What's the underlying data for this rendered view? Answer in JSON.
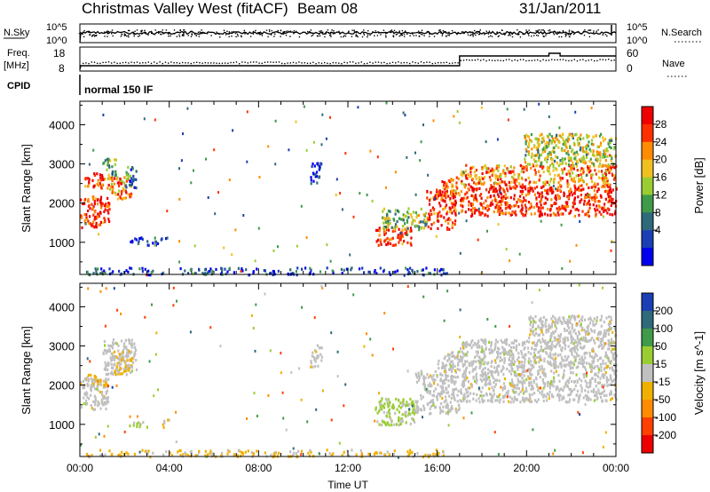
{
  "header": {
    "title": "Christmas Valley West (fitACF)",
    "beam": "Beam 08",
    "date": "31/Jan/2011"
  },
  "top_strips": {
    "nsky": {
      "label": "N.Sky",
      "ticks": [
        "10^5",
        "10^0"
      ]
    },
    "nsearch": {
      "label": "N.Search",
      "ticks": [
        "10^5",
        "10^0"
      ]
    },
    "freq": {
      "label_line1": "Freq.",
      "label_line2": "[MHz]",
      "ticks": [
        "18",
        "8"
      ]
    },
    "nave": {
      "label": "Nave",
      "ticks": [
        "60",
        "0"
      ]
    },
    "cpid": {
      "label": "CPID",
      "value": "normal 150 IF"
    }
  },
  "chart_data": [
    {
      "type": "heatmap",
      "name": "power",
      "ylabel": "Slant Range [km]",
      "xlabel": "Time UT",
      "x_ticks": [
        "00:00",
        "04:00",
        "08:00",
        "12:00",
        "16:00",
        "20:00",
        "00:00"
      ],
      "x_range_hours": [
        0,
        24
      ],
      "y_ticks": [
        1000,
        2000,
        3000,
        4000
      ],
      "ylim": [
        180,
        4600
      ],
      "colorbar": {
        "label": "Power [dB]",
        "ticks": [
          "28",
          "24",
          "20",
          "16",
          "12",
          "8",
          "4"
        ],
        "range": [
          0,
          30
        ],
        "colors": [
          "#0000ee",
          "#1a3fb5",
          "#2e6a7a",
          "#3f9a4a",
          "#9acd32",
          "#f0c020",
          "#ff8c00",
          "#ff3000",
          "#ee0000"
        ]
      },
      "regions": [
        {
          "t": [
            0.0,
            1.3
          ],
          "r": [
            1400,
            2200
          ],
          "power": 27
        },
        {
          "t": [
            0.2,
            1.1
          ],
          "r": [
            2400,
            2800
          ],
          "power": 26
        },
        {
          "t": [
            1.0,
            1.6
          ],
          "r": [
            2700,
            3200
          ],
          "power": 12
        },
        {
          "t": [
            1.2,
            2.3
          ],
          "r": [
            2100,
            2700
          ],
          "power": 22
        },
        {
          "t": [
            2.0,
            2.5
          ],
          "r": [
            2400,
            2950
          ],
          "power": 8
        },
        {
          "t": [
            2.2,
            3.5
          ],
          "r": [
            950,
            1150
          ],
          "power": 5
        },
        {
          "t": [
            3.6,
            4.0
          ],
          "r": [
            950,
            1150
          ],
          "power": 6
        },
        {
          "t": [
            10.3,
            10.8
          ],
          "r": [
            2500,
            3050
          ],
          "power": 4
        },
        {
          "t": [
            13.2,
            14.8
          ],
          "r": [
            950,
            1400
          ],
          "power": 26
        },
        {
          "t": [
            13.5,
            15.5
          ],
          "r": [
            1350,
            1900
          ],
          "power": 14
        },
        {
          "t": [
            15.5,
            16.8
          ],
          "r": [
            1350,
            2400
          ],
          "power": 25
        },
        {
          "t": [
            16.0,
            17.0
          ],
          "r": [
            2200,
            2700
          ],
          "power": 23
        },
        {
          "t": [
            17.0,
            24.0
          ],
          "r": [
            1700,
            2500
          ],
          "power": 27
        },
        {
          "t": [
            17.0,
            24.0
          ],
          "r": [
            2500,
            3000
          ],
          "power": 22
        },
        {
          "t": [
            19.8,
            24.0
          ],
          "r": [
            3000,
            3800
          ],
          "power": 16
        },
        {
          "t": [
            0.2,
            16.5
          ],
          "r": [
            200,
            380
          ],
          "power": 5
        }
      ]
    },
    {
      "type": "heatmap",
      "name": "velocity",
      "ylabel": "Slant Range [km]",
      "xlabel": "Time UT",
      "x_ticks": [
        "00:00",
        "04:00",
        "08:00",
        "12:00",
        "16:00",
        "20:00",
        "00:00"
      ],
      "x_range_hours": [
        0,
        24
      ],
      "y_ticks": [
        1000,
        2000,
        3000,
        4000
      ],
      "ylim": [
        180,
        4600
      ],
      "colorbar": {
        "label": "Velocity [m s^-1]",
        "ticks": [
          "200",
          "100",
          "50",
          "15",
          "-15",
          "-50",
          "-100",
          "-200"
        ],
        "range": [
          -250,
          250
        ],
        "colors": [
          "#ee0000",
          "#ff4000",
          "#ff8c00",
          "#f0b000",
          "#c0c0c0",
          "#9acd32",
          "#3f9a4a",
          "#2e6a7a",
          "#1a3fb5"
        ]
      },
      "regions": [
        {
          "t": [
            0.0,
            1.3
          ],
          "r": [
            1400,
            2200
          ],
          "velocity": 0
        },
        {
          "t": [
            0.3,
            1.2
          ],
          "r": [
            2000,
            2300
          ],
          "velocity": -40
        },
        {
          "t": [
            1.0,
            2.5
          ],
          "r": [
            2300,
            3200
          ],
          "velocity": 0
        },
        {
          "t": [
            1.5,
            2.3
          ],
          "r": [
            2300,
            2900
          ],
          "velocity": -30
        },
        {
          "t": [
            2.2,
            3.0
          ],
          "r": [
            950,
            1150
          ],
          "velocity": 40
        },
        {
          "t": [
            3.6,
            4.0
          ],
          "r": [
            950,
            1150
          ],
          "velocity": -40
        },
        {
          "t": [
            10.3,
            10.8
          ],
          "r": [
            2500,
            3050
          ],
          "velocity": 0
        },
        {
          "t": [
            13.2,
            15.0
          ],
          "r": [
            1000,
            1700
          ],
          "velocity": 40
        },
        {
          "t": [
            15.0,
            17.0
          ],
          "r": [
            1300,
            2400
          ],
          "velocity": 0
        },
        {
          "t": [
            16.0,
            17.0
          ],
          "r": [
            2400,
            2900
          ],
          "velocity": 0
        },
        {
          "t": [
            17.0,
            24.0
          ],
          "r": [
            1600,
            2600
          ],
          "velocity": 0
        },
        {
          "t": [
            17.0,
            24.0
          ],
          "r": [
            2600,
            3200
          ],
          "velocity": 0
        },
        {
          "t": [
            20.0,
            24.0
          ],
          "r": [
            3100,
            3800
          ],
          "velocity": 0
        },
        {
          "t": [
            0.2,
            16.5
          ],
          "r": [
            200,
            380
          ],
          "velocity": -40
        }
      ]
    }
  ]
}
